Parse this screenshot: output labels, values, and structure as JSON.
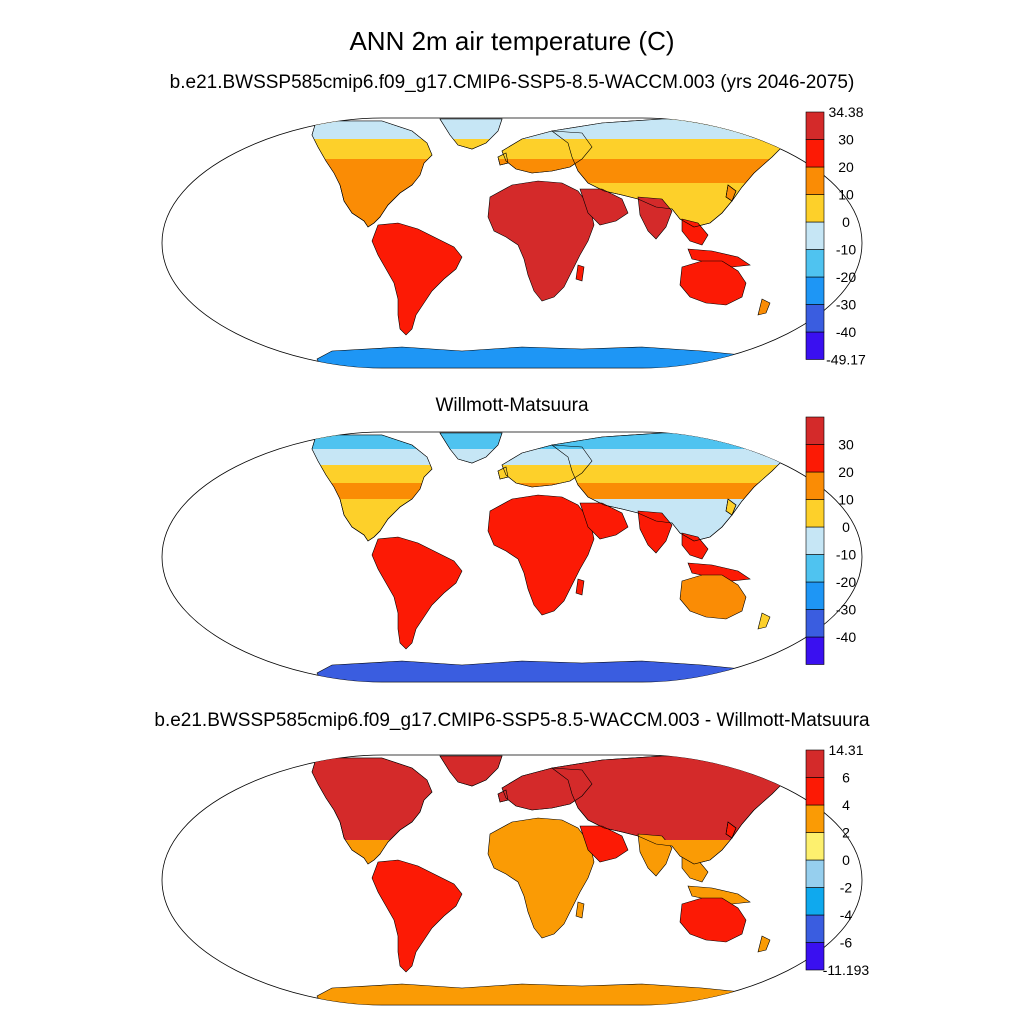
{
  "figure": {
    "title": "ANN 2m air temperature (C)"
  },
  "panels": [
    {
      "title": "b.e21.BWSSP585cmip6.f09_g17.CMIP6-SSP5-8.5-WACCM.003 (yrs 2046-2075)",
      "field": "model",
      "colorbar": {
        "colors": [
          "#3a10f0",
          "#3a5de0",
          "#1e96f5",
          "#4fc3f0",
          "#c6e6f5",
          "#fdd02a",
          "#fa8c05",
          "#fc1a05",
          "#d42a2a"
        ],
        "labels": [
          "-49.17",
          "-40",
          "-30",
          "-20",
          "-10",
          "0",
          "10",
          "20",
          "30",
          "34.38"
        ]
      }
    },
    {
      "title": "Willmott-Matsuura",
      "field": "obs",
      "colorbar": {
        "colors": [
          "#3a10f0",
          "#3a5de0",
          "#1e96f5",
          "#4fc3f0",
          "#c6e6f5",
          "#fdd02a",
          "#fa8c05",
          "#fc1a05",
          "#d42a2a"
        ],
        "labels": [
          "-40",
          "-30",
          "-20",
          "-10",
          "0",
          "10",
          "20",
          "30"
        ]
      }
    },
    {
      "title": "b.e21.BWSSP585cmip6.f09_g17.CMIP6-SSP5-8.5-WACCM.003 - Willmott-Matsuura",
      "field": "diff",
      "colorbar": {
        "colors": [
          "#3a10f0",
          "#3a5de0",
          "#0fa9ee",
          "#96cfee",
          "#fdf06e",
          "#fa9b05",
          "#fc1a05",
          "#d42a2a"
        ],
        "labels": [
          "-11.193",
          "-6",
          "-4",
          "-2",
          "0",
          "2",
          "4",
          "6",
          "14.31"
        ]
      }
    }
  ]
}
